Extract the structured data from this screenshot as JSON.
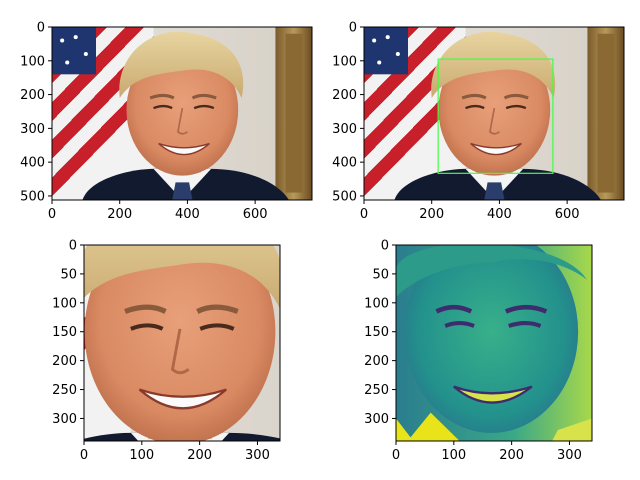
{
  "chart_data": [
    {
      "type": "image",
      "title": "",
      "xlabel": "",
      "ylabel": "",
      "xlim": [
        0,
        768
      ],
      "ylim": [
        512,
        0
      ],
      "xticks": [
        0,
        200,
        400,
        600
      ],
      "yticks": [
        0,
        100,
        200,
        300,
        400,
        500
      ],
      "content": "color portrait photo",
      "colors": {
        "frame": "#000000",
        "background": "#ffffff"
      }
    },
    {
      "type": "image",
      "title": "",
      "xlabel": "",
      "ylabel": "",
      "xlim": [
        0,
        768
      ],
      "ylim": [
        512,
        0
      ],
      "xticks": [
        0,
        200,
        400,
        600
      ],
      "yticks": [
        0,
        100,
        200,
        300,
        400,
        500
      ],
      "content": "color portrait photo with face detection box",
      "rectangle": {
        "x0": 219,
        "y0": 95,
        "x1": 558,
        "y1": 433,
        "color": "#40ff40"
      }
    },
    {
      "type": "image",
      "title": "",
      "xlabel": "",
      "ylabel": "",
      "xlim": [
        0,
        339
      ],
      "ylim": [
        339,
        0
      ],
      "xticks": [
        0,
        100,
        200,
        300
      ],
      "yticks": [
        0,
        50,
        100,
        150,
        200,
        250,
        300
      ],
      "content": "cropped face, color"
    },
    {
      "type": "image",
      "title": "",
      "xlabel": "",
      "ylabel": "",
      "xlim": [
        0,
        339
      ],
      "ylim": [
        339,
        0
      ],
      "xticks": [
        0,
        100,
        200,
        300
      ],
      "yticks": [
        0,
        50,
        100,
        150,
        200,
        250,
        300
      ],
      "content": "cropped face, single channel, viridis colormap",
      "colormap": "viridis"
    }
  ]
}
